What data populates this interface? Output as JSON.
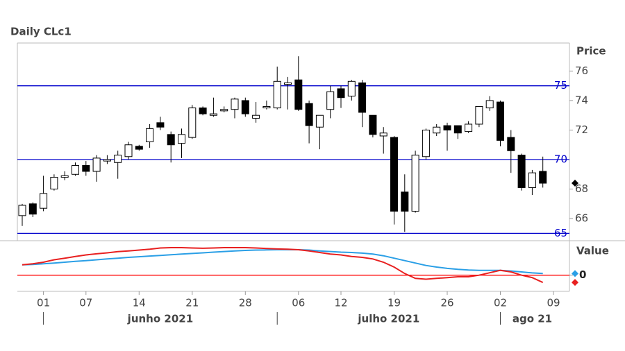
{
  "chart_data": [
    {
      "type": "candlestick",
      "title": "Daily CLc1",
      "axis_title": "Price",
      "categories": [
        null,
        null,
        "01",
        null,
        null,
        null,
        "07",
        null,
        null,
        null,
        null,
        "14",
        null,
        null,
        null,
        null,
        "21",
        null,
        null,
        null,
        null,
        "28",
        null,
        null,
        null,
        null,
        "06",
        null,
        null,
        null,
        "12",
        null,
        null,
        null,
        null,
        "19",
        null,
        null,
        null,
        null,
        "26",
        null,
        null,
        null,
        null,
        "02",
        null,
        null,
        null,
        null,
        "09"
      ],
      "x_group_labels": [
        "junho 2021",
        "julho 2021",
        "ago 21"
      ],
      "open": [
        66.2,
        67.0,
        66.7,
        68.0,
        68.8,
        69.0,
        69.6,
        69.2,
        69.9,
        69.8,
        70.2,
        70.9,
        71.2,
        72.5,
        71.7,
        71.1,
        71.5,
        73.5,
        73.0,
        73.3,
        73.4,
        74.0,
        72.8,
        73.5,
        73.5,
        75.1,
        75.4,
        73.8,
        72.2,
        73.4,
        74.8,
        74.3,
        75.2,
        73.0,
        71.6,
        71.5,
        67.8,
        66.5,
        70.2,
        71.8,
        72.3,
        72.3,
        71.9,
        72.4,
        73.5,
        73.9,
        71.5,
        70.3,
        68.1,
        69.2,
        null
      ],
      "high": [
        67.0,
        67.1,
        68.9,
        69.0,
        69.2,
        69.8,
        69.9,
        70.3,
        70.3,
        70.6,
        71.2,
        71.0,
        72.4,
        72.9,
        71.9,
        72.1,
        73.7,
        73.6,
        74.2,
        73.6,
        74.2,
        74.2,
        73.9,
        74.0,
        76.3,
        75.6,
        77.0,
        74.0,
        73.0,
        75.0,
        75.0,
        75.4,
        75.4,
        73.0,
        72.2,
        71.6,
        69.0,
        70.6,
        72.1,
        72.4,
        72.5,
        72.3,
        72.6,
        73.6,
        74.3,
        74.0,
        72.0,
        70.4,
        69.3,
        70.2,
        null
      ],
      "low": [
        65.5,
        66.1,
        66.5,
        67.9,
        68.6,
        68.9,
        68.9,
        68.5,
        69.7,
        68.7,
        70.0,
        70.6,
        70.8,
        72.0,
        69.8,
        70.1,
        71.4,
        73.0,
        72.9,
        73.2,
        72.8,
        72.9,
        72.5,
        73.4,
        73.4,
        73.4,
        73.3,
        71.1,
        70.7,
        72.8,
        73.5,
        74.0,
        72.2,
        71.5,
        70.4,
        65.6,
        65.1,
        66.4,
        70.0,
        71.6,
        70.6,
        71.4,
        71.8,
        72.2,
        73.3,
        70.9,
        69.1,
        67.9,
        67.6,
        68.1,
        null
      ],
      "close": [
        66.9,
        66.3,
        67.7,
        68.8,
        68.9,
        69.6,
        69.2,
        70.1,
        70.0,
        70.3,
        71.0,
        70.7,
        72.1,
        72.2,
        71.0,
        71.7,
        73.5,
        73.1,
        73.1,
        73.4,
        74.1,
        73.1,
        73.0,
        73.6,
        75.3,
        75.2,
        73.4,
        72.3,
        73.0,
        74.6,
        74.2,
        75.3,
        73.2,
        71.7,
        71.8,
        66.5,
        66.5,
        70.3,
        72.0,
        72.2,
        72.0,
        71.8,
        72.4,
        73.6,
        74.0,
        71.3,
        70.6,
        68.1,
        69.1,
        68.4,
        null
      ],
      "up_color": "#ffffff",
      "down_color": "#000000",
      "ylim": [
        64.5,
        77.9
      ],
      "yticks": [
        66,
        68,
        72,
        74,
        76
      ],
      "hlines": [
        65,
        70,
        75
      ],
      "hline_color": "#0000cc"
    },
    {
      "type": "line",
      "axis_title": "Value",
      "series": [
        {
          "color": "#2a9fe6",
          "values": [
            0.64,
            0.66,
            0.7,
            0.75,
            0.8,
            0.85,
            0.9,
            0.95,
            1.0,
            1.05,
            1.1,
            1.14,
            1.18,
            1.22,
            1.26,
            1.3,
            1.34,
            1.38,
            1.42,
            1.46,
            1.5,
            1.53,
            1.55,
            1.56,
            1.57,
            1.57,
            1.57,
            1.55,
            1.5,
            1.46,
            1.42,
            1.4,
            1.36,
            1.3,
            1.2,
            1.05,
            0.9,
            0.75,
            0.6,
            0.5,
            0.42,
            0.36,
            0.32,
            0.3,
            0.3,
            0.3,
            0.26,
            0.2,
            0.14,
            0.1,
            null
          ]
        },
        {
          "color": "#e82020",
          "values": [
            0.64,
            0.7,
            0.8,
            0.95,
            1.05,
            1.15,
            1.25,
            1.32,
            1.38,
            1.45,
            1.5,
            1.55,
            1.6,
            1.68,
            1.7,
            1.7,
            1.68,
            1.66,
            1.68,
            1.7,
            1.7,
            1.7,
            1.68,
            1.65,
            1.62,
            1.6,
            1.57,
            1.5,
            1.4,
            1.3,
            1.25,
            1.15,
            1.1,
            1.0,
            0.8,
            0.5,
            0.1,
            -0.2,
            -0.25,
            -0.2,
            -0.15,
            -0.1,
            -0.1,
            0.0,
            0.15,
            0.3,
            0.2,
            0.0,
            -0.15,
            -0.45,
            null
          ]
        }
      ],
      "ylim": [
        -1,
        2
      ],
      "yticks": [
        0
      ],
      "hlines": [
        0
      ],
      "hline_color": "#ff0000"
    }
  ]
}
